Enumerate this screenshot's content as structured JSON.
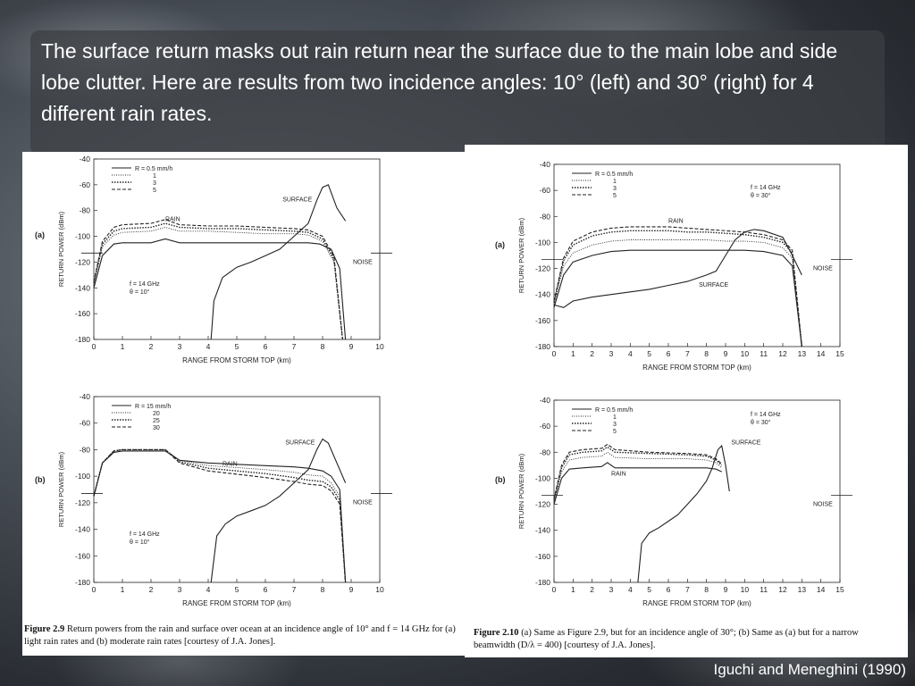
{
  "slide": {
    "headline": "The surface return masks out rain return near the surface due to the main lobe and side lobe clutter.  Here are results from two incidence angles: 10° (left) and 30° (right) for 4 different rain rates.",
    "credit": "Iguchi and Meneghini (1990)"
  },
  "left_figure": {
    "caption_label": "Figure 2.9",
    "caption_text": "Return powers from the rain and surface over ocean at an incidence angle of 10° and f = 14 GHz for (a) light rain rates and (b) moderate rain rates [courtesy of J.A. Jones]."
  },
  "right_figure": {
    "caption_label": "Figure 2.10",
    "caption_text": "(a) Same as Figure 2.9, but for an incidence angle of 30°; (b) Same as (a) but for a narrow beamwidth (D/λ = 400) [courtesy of J.A. Jones]."
  },
  "chart_data": [
    {
      "type": "line",
      "panel": "(a)",
      "ylabel": "RETURN POWER (dBm)",
      "xlabel": "RANGE FROM STORM TOP (km)",
      "xlim": [
        0,
        10
      ],
      "ylim": [
        -180,
        -40
      ],
      "xticks": [
        "0",
        "1",
        "2",
        "3",
        "4",
        "5",
        "6",
        "7",
        "8",
        "9",
        "10"
      ],
      "yticks": [
        "-40",
        "-60",
        "-80",
        "-100",
        "-120",
        "-140",
        "-160",
        "-180"
      ],
      "legend_title": "R = 0.5 mm/h",
      "legend": [
        "R = 0.5 mm/h",
        "1",
        "3",
        "5"
      ],
      "params": [
        "f = 14 GHz",
        "θ = 10°"
      ],
      "annotations": [
        "RAIN",
        "SURFACE",
        "NOISE"
      ],
      "series": [
        {
          "name": "R = 0.5 mm/h",
          "style": "solid",
          "x": [
            0,
            0.3,
            0.7,
            1,
            2,
            2.5,
            3,
            3.5,
            4,
            5,
            6,
            7,
            7.5,
            7.9,
            8.3,
            8.6,
            8.8
          ],
          "y": [
            -140,
            -115,
            -106,
            -105,
            -105,
            -102,
            -105,
            -105,
            -105,
            -105,
            -105,
            -105,
            -105,
            -106,
            -110,
            -125,
            -180
          ]
        },
        {
          "name": "1",
          "style": "dotted",
          "x": [
            0,
            0.3,
            0.7,
            1,
            2,
            2.5,
            3,
            4,
            5,
            6,
            7,
            7.5,
            8,
            8.4,
            8.7
          ],
          "y": [
            -138,
            -108,
            -99,
            -97,
            -96,
            -93,
            -96,
            -96,
            -97,
            -98,
            -98,
            -99,
            -104,
            -120,
            -180
          ]
        },
        {
          "name": "3",
          "style": "dotted-bold",
          "x": [
            0,
            0.3,
            0.7,
            1,
            2,
            2.5,
            3,
            4,
            5,
            6,
            7,
            7.5,
            8,
            8.4,
            8.7
          ],
          "y": [
            -136,
            -106,
            -96,
            -94,
            -93,
            -90,
            -93,
            -94,
            -94,
            -95,
            -96,
            -97,
            -102,
            -118,
            -180
          ]
        },
        {
          "name": "5",
          "style": "dashed",
          "x": [
            0,
            0.3,
            0.7,
            1,
            2,
            2.5,
            3,
            4,
            5,
            6,
            7,
            7.5,
            8,
            8.4,
            8.7
          ],
          "y": [
            -135,
            -104,
            -93,
            -91,
            -90,
            -87,
            -91,
            -92,
            -92,
            -93,
            -94,
            -95,
            -100,
            -116,
            -180
          ]
        },
        {
          "name": "SURFACE",
          "style": "solid",
          "x": [
            4.1,
            4.2,
            4.5,
            5,
            5.5,
            6,
            6.5,
            7,
            7.5,
            7.8,
            8,
            8.2,
            8.5,
            8.8
          ],
          "y": [
            -180,
            -150,
            -132,
            -124,
            -120,
            -115,
            -110,
            -100,
            -90,
            -72,
            -62,
            -60,
            -78,
            -88
          ]
        }
      ]
    },
    {
      "type": "line",
      "panel": "(b)",
      "ylabel": "RETURN POWER (dBm)",
      "xlabel": "RANGE FROM STORM TOP (km)",
      "xlim": [
        0,
        10
      ],
      "ylim": [
        -180,
        -40
      ],
      "xticks": [
        "0",
        "1",
        "2",
        "3",
        "4",
        "5",
        "6",
        "7",
        "8",
        "9",
        "10"
      ],
      "yticks": [
        "-40",
        "-60",
        "-80",
        "-100",
        "-120",
        "-140",
        "-160",
        "-180"
      ],
      "legend": [
        "R = 15 mm/h",
        "20",
        "25",
        "30"
      ],
      "params": [
        "f = 14 GHz",
        "θ = 10°"
      ],
      "annotations": [
        "RAIN",
        "SURFACE",
        "NOISE"
      ],
      "series": [
        {
          "name": "R = 15 mm/h",
          "style": "solid",
          "x": [
            0,
            0.3,
            0.7,
            1,
            2,
            2.5,
            3,
            4,
            6,
            7,
            7.5,
            8,
            8.3,
            8.6,
            8.8
          ],
          "y": [
            -115,
            -90,
            -82,
            -81,
            -81,
            -81,
            -88,
            -90,
            -92,
            -93,
            -94,
            -96,
            -100,
            -110,
            -180
          ]
        },
        {
          "name": "20",
          "style": "dotted",
          "x": [
            0,
            0.3,
            0.7,
            1,
            2,
            2.5,
            3,
            4,
            6,
            7,
            7.5,
            8,
            8.3,
            8.6,
            8.8
          ],
          "y": [
            -115,
            -90,
            -81,
            -80,
            -80,
            -80,
            -88,
            -92,
            -95,
            -97,
            -99,
            -100,
            -105,
            -115,
            -180
          ]
        },
        {
          "name": "25",
          "style": "dotted-bold",
          "x": [
            0,
            0.3,
            0.7,
            1,
            2,
            2.5,
            3,
            4,
            6,
            7,
            7.5,
            8,
            8.3,
            8.6,
            8.8
          ],
          "y": [
            -115,
            -90,
            -81,
            -80,
            -80,
            -80,
            -89,
            -94,
            -98,
            -101,
            -103,
            -104,
            -108,
            -118,
            -180
          ]
        },
        {
          "name": "30",
          "style": "dashed",
          "x": [
            0,
            0.3,
            0.7,
            1,
            2,
            2.5,
            3,
            4,
            6,
            7,
            7.5,
            8,
            8.3,
            8.6,
            8.8
          ],
          "y": [
            -115,
            -90,
            -81,
            -80,
            -80,
            -80,
            -90,
            -96,
            -101,
            -104,
            -106,
            -107,
            -111,
            -121,
            -180
          ]
        },
        {
          "name": "SURFACE",
          "style": "solid",
          "x": [
            4.1,
            4.3,
            4.6,
            5,
            5.5,
            6,
            6.5,
            7,
            7.5,
            7.8,
            8,
            8.2,
            8.5,
            8.8
          ],
          "y": [
            -180,
            -145,
            -136,
            -130,
            -126,
            -122,
            -115,
            -105,
            -95,
            -80,
            -72,
            -75,
            -90,
            -105
          ]
        }
      ]
    },
    {
      "type": "line",
      "panel": "(a)",
      "ylabel": "RETURN POWER (dBm)",
      "xlabel": "RANGE FROM STORM TOP (km)",
      "xlim": [
        0,
        15
      ],
      "ylim": [
        -180,
        -40
      ],
      "xticks": [
        "0",
        "1",
        "2",
        "3",
        "4",
        "5",
        "6",
        "7",
        "8",
        "9",
        "10",
        "11",
        "12",
        "13",
        "14",
        "15"
      ],
      "yticks": [
        "-40",
        "-60",
        "-80",
        "-100",
        "-120",
        "-140",
        "-160",
        "-180"
      ],
      "legend": [
        "R = 0.5 mm/h",
        "1",
        "3",
        "5"
      ],
      "params": [
        "f = 14 GHz",
        "θ = 30°"
      ],
      "annotations": [
        "RAIN",
        "SURFACE",
        "NOISE"
      ],
      "series": [
        {
          "name": "R = 0.5 mm/h",
          "style": "solid",
          "x": [
            0,
            0.5,
            1,
            2,
            3,
            4,
            5,
            6,
            7,
            8,
            9,
            10,
            11,
            12,
            12.5,
            13
          ],
          "y": [
            -150,
            -125,
            -115,
            -110,
            -107,
            -106,
            -106,
            -106,
            -106,
            -106,
            -106,
            -106,
            -107,
            -110,
            -118,
            -180
          ]
        },
        {
          "name": "1",
          "style": "dotted",
          "x": [
            0,
            0.5,
            1,
            2,
            3,
            4,
            5,
            6,
            7,
            8,
            9,
            10,
            11,
            12,
            12.5,
            13
          ],
          "y": [
            -148,
            -118,
            -108,
            -102,
            -99,
            -98,
            -98,
            -98,
            -98,
            -98,
            -99,
            -99,
            -100,
            -104,
            -112,
            -180
          ]
        },
        {
          "name": "3",
          "style": "dotted-bold",
          "x": [
            0,
            0.5,
            1,
            2,
            3,
            4,
            5,
            6,
            7,
            8,
            9,
            10,
            11,
            12,
            12.5,
            13
          ],
          "y": [
            -146,
            -114,
            -102,
            -95,
            -92,
            -91,
            -91,
            -91,
            -92,
            -92,
            -93,
            -94,
            -96,
            -100,
            -108,
            -180
          ]
        },
        {
          "name": "5",
          "style": "dashed",
          "x": [
            0,
            0.5,
            1,
            2,
            3,
            4,
            5,
            6,
            7,
            8,
            9,
            10,
            11,
            12,
            12.5,
            13
          ],
          "y": [
            -145,
            -112,
            -99,
            -92,
            -89,
            -88,
            -88,
            -88,
            -89,
            -90,
            -91,
            -92,
            -94,
            -98,
            -106,
            -180
          ]
        },
        {
          "name": "SURFACE",
          "style": "solid",
          "x": [
            0,
            0.5,
            1,
            2,
            3,
            4,
            5,
            6,
            7,
            8,
            8.5,
            9,
            9.5,
            10,
            10.5,
            11,
            12,
            12.5,
            13
          ],
          "y": [
            -148,
            -150,
            -145,
            -142,
            -140,
            -138,
            -136,
            -133,
            -130,
            -125,
            -122,
            -110,
            -98,
            -92,
            -90,
            -91,
            -96,
            -110,
            -125
          ]
        }
      ]
    },
    {
      "type": "line",
      "panel": "(b)",
      "ylabel": "RETURN POWER (dBm)",
      "xlabel": "RANGE FROM STORM TOP (km)",
      "xlim": [
        0,
        15
      ],
      "ylim": [
        -180,
        -40
      ],
      "xticks": [
        "0",
        "1",
        "2",
        "3",
        "4",
        "5",
        "6",
        "7",
        "8",
        "9",
        "10",
        "11",
        "12",
        "13",
        "14",
        "15"
      ],
      "yticks": [
        "-40",
        "-60",
        "-80",
        "-100",
        "-120",
        "-140",
        "-160",
        "-180"
      ],
      "legend": [
        "R = 0.5 mm/h",
        "1",
        "3",
        "5"
      ],
      "params": [
        "f = 14 GHz",
        "θ = 30°"
      ],
      "annotations": [
        "RAIN",
        "SURFACE",
        "NOISE"
      ],
      "series": [
        {
          "name": "R = 0.5 mm/h",
          "style": "solid",
          "x": [
            0,
            0.4,
            0.8,
            1.5,
            2.5,
            2.8,
            3.2,
            5,
            7,
            8,
            8.5,
            8.8
          ],
          "y": [
            -120,
            -100,
            -93,
            -92,
            -91,
            -88,
            -92,
            -92,
            -92,
            -92,
            -93,
            -95
          ]
        },
        {
          "name": "1",
          "style": "dotted",
          "x": [
            0,
            0.4,
            0.8,
            1.5,
            2.5,
            2.8,
            3.2,
            5,
            7,
            8,
            8.5,
            8.8
          ],
          "y": [
            -118,
            -95,
            -86,
            -84,
            -83,
            -80,
            -84,
            -85,
            -85,
            -86,
            -88,
            -92
          ]
        },
        {
          "name": "3",
          "style": "dotted-bold",
          "x": [
            0,
            0.4,
            0.8,
            1.5,
            2.5,
            2.8,
            3.2,
            5,
            7,
            8,
            8.5,
            8.8
          ],
          "y": [
            -117,
            -92,
            -82,
            -80,
            -79,
            -76,
            -80,
            -81,
            -82,
            -83,
            -86,
            -90
          ]
        },
        {
          "name": "5",
          "style": "dashed",
          "x": [
            0,
            0.4,
            0.8,
            1.5,
            2.5,
            2.8,
            3.2,
            5,
            7,
            8,
            8.5,
            8.8
          ],
          "y": [
            -116,
            -90,
            -80,
            -78,
            -77,
            -74,
            -78,
            -80,
            -81,
            -82,
            -85,
            -89
          ]
        },
        {
          "name": "SURFACE",
          "style": "solid",
          "x": [
            4.4,
            4.6,
            5,
            5.5,
            6,
            6.5,
            7,
            7.5,
            8,
            8.3,
            8.6,
            8.8,
            9,
            9.2
          ],
          "y": [
            -180,
            -150,
            -142,
            -138,
            -133,
            -128,
            -120,
            -112,
            -102,
            -92,
            -78,
            -75,
            -90,
            -110
          ]
        }
      ]
    }
  ]
}
